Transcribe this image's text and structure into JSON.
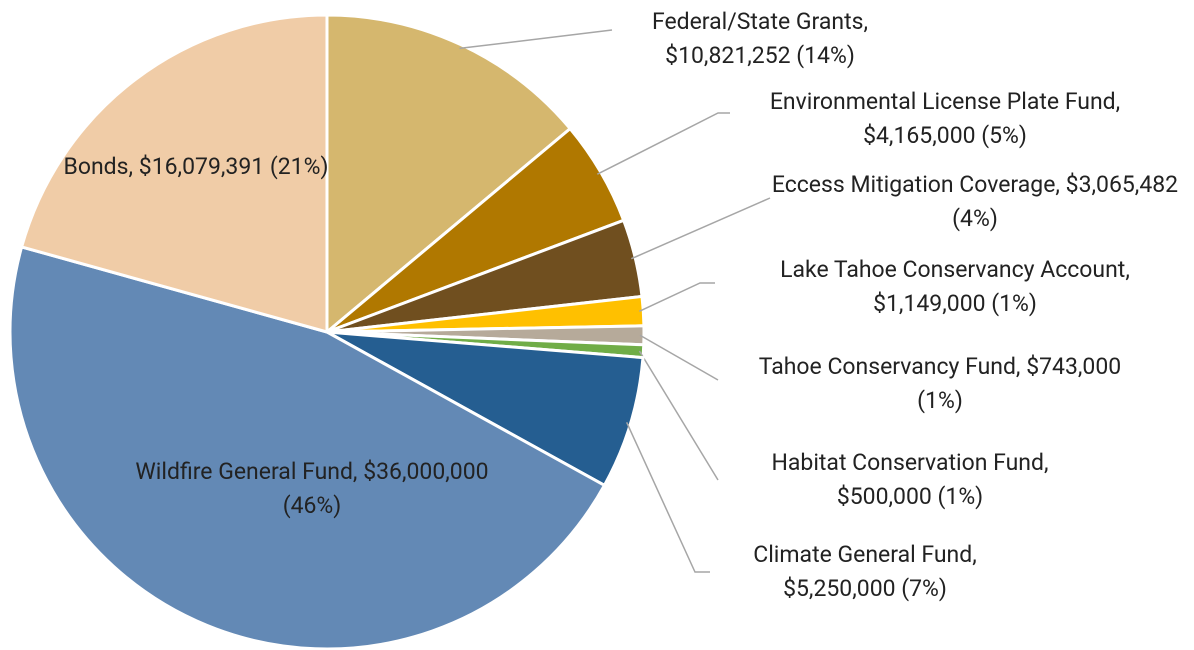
{
  "chart_data": {
    "type": "pie",
    "categories": [
      "Federal/State Grants,",
      "Environmental License Plate Fund,",
      "Eccess Mitigation Coverage,",
      "Lake Tahoe Conservancy Account,",
      "Tahoe Conservancy Fund,",
      "Habitat Conservation Fund,",
      "Climate General Fund,",
      "Wildfire General Fund,",
      "Bonds,"
    ],
    "values": [
      10821252,
      4165000,
      3065482,
      1149000,
      743000,
      500000,
      5250000,
      36000000,
      16079391
    ],
    "value_labels": [
      "$10,821,252 (14%)",
      "$4,165,000 (5%)",
      "$3,065,482 (4%)",
      "$1,149,000 (1%)",
      "$743,000 (1%)",
      "$500,000 (1%)",
      "$5,250,000 (7%)",
      "$36,000,000 (46%)",
      "$16,079,391 (21%)"
    ],
    "colors": [
      "#d5b76e",
      "#b07800",
      "#704f1f",
      "#ffc000",
      "#b6aa9a",
      "#70ad47",
      "#255e91",
      "#6389b5",
      "#f0cca7"
    ]
  }
}
